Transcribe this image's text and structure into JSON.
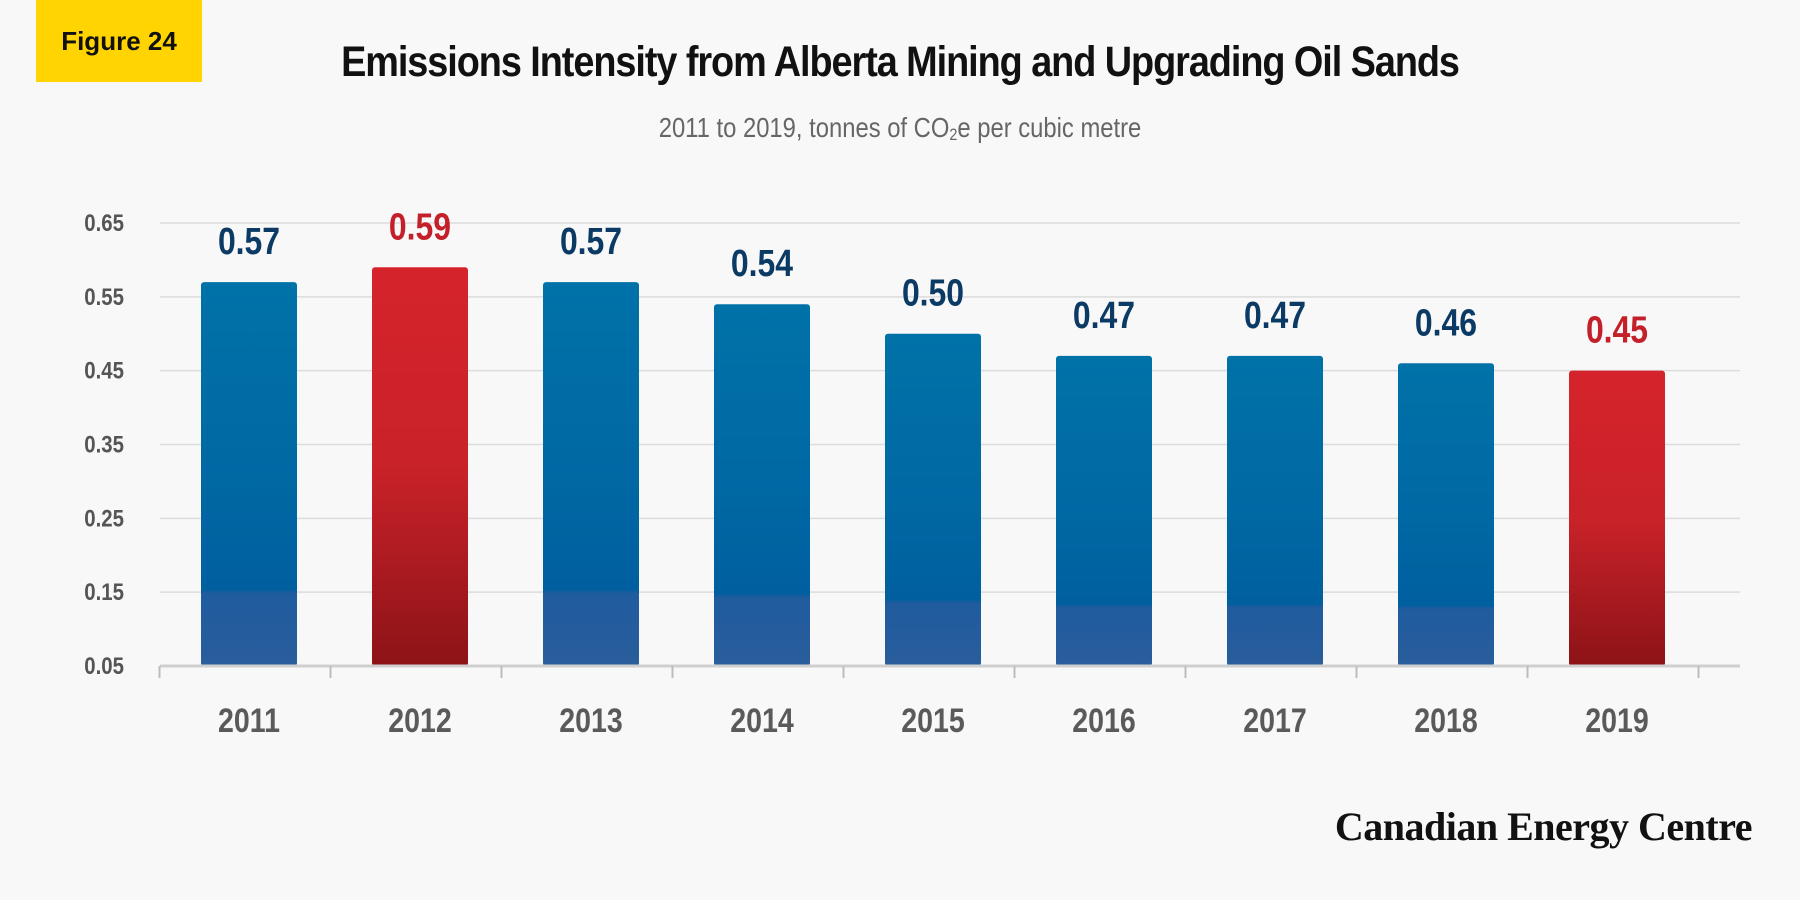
{
  "badge": {
    "label": "Figure 24"
  },
  "header": {
    "title": "Emissions Intensity from Alberta Mining and Upgrading Oil Sands",
    "subtitle_prefix": "2011 to 2019, tonnes of CO",
    "subtitle_sub": "2",
    "subtitle_suffix": "e per cubic metre"
  },
  "brand": {
    "name": "Canadian Energy Centre"
  },
  "colors": {
    "blue_top": "#0071a6",
    "blue_bottom": "#1a5a9a",
    "red_top": "#d2232a",
    "red_bottom": "#8f1418",
    "label_blue": "#0b3b64",
    "label_red": "#c4202a",
    "axis_text": "#555555",
    "grid": "#dcdcdc"
  },
  "chart_data": {
    "type": "bar",
    "categories": [
      "2011",
      "2012",
      "2013",
      "2014",
      "2015",
      "2016",
      "2017",
      "2018",
      "2019"
    ],
    "values": [
      0.57,
      0.59,
      0.57,
      0.54,
      0.5,
      0.47,
      0.47,
      0.46,
      0.45
    ],
    "value_labels": [
      "0.57",
      "0.59",
      "0.57",
      "0.54",
      "0.50",
      "0.47",
      "0.47",
      "0.46",
      "0.45"
    ],
    "highlight": [
      "blue",
      "red",
      "blue",
      "blue",
      "blue",
      "blue",
      "blue",
      "blue",
      "red"
    ],
    "yticks": [
      "0.05",
      "0.15",
      "0.25",
      "0.35",
      "0.45",
      "0.55",
      "0.65"
    ],
    "ylim": [
      0.05,
      0.65
    ],
    "grid": true,
    "title": "Emissions Intensity from Alberta Mining and Upgrading Oil Sands",
    "subtitle": "2011 to 2019, tonnes of CO2e per cubic metre"
  }
}
